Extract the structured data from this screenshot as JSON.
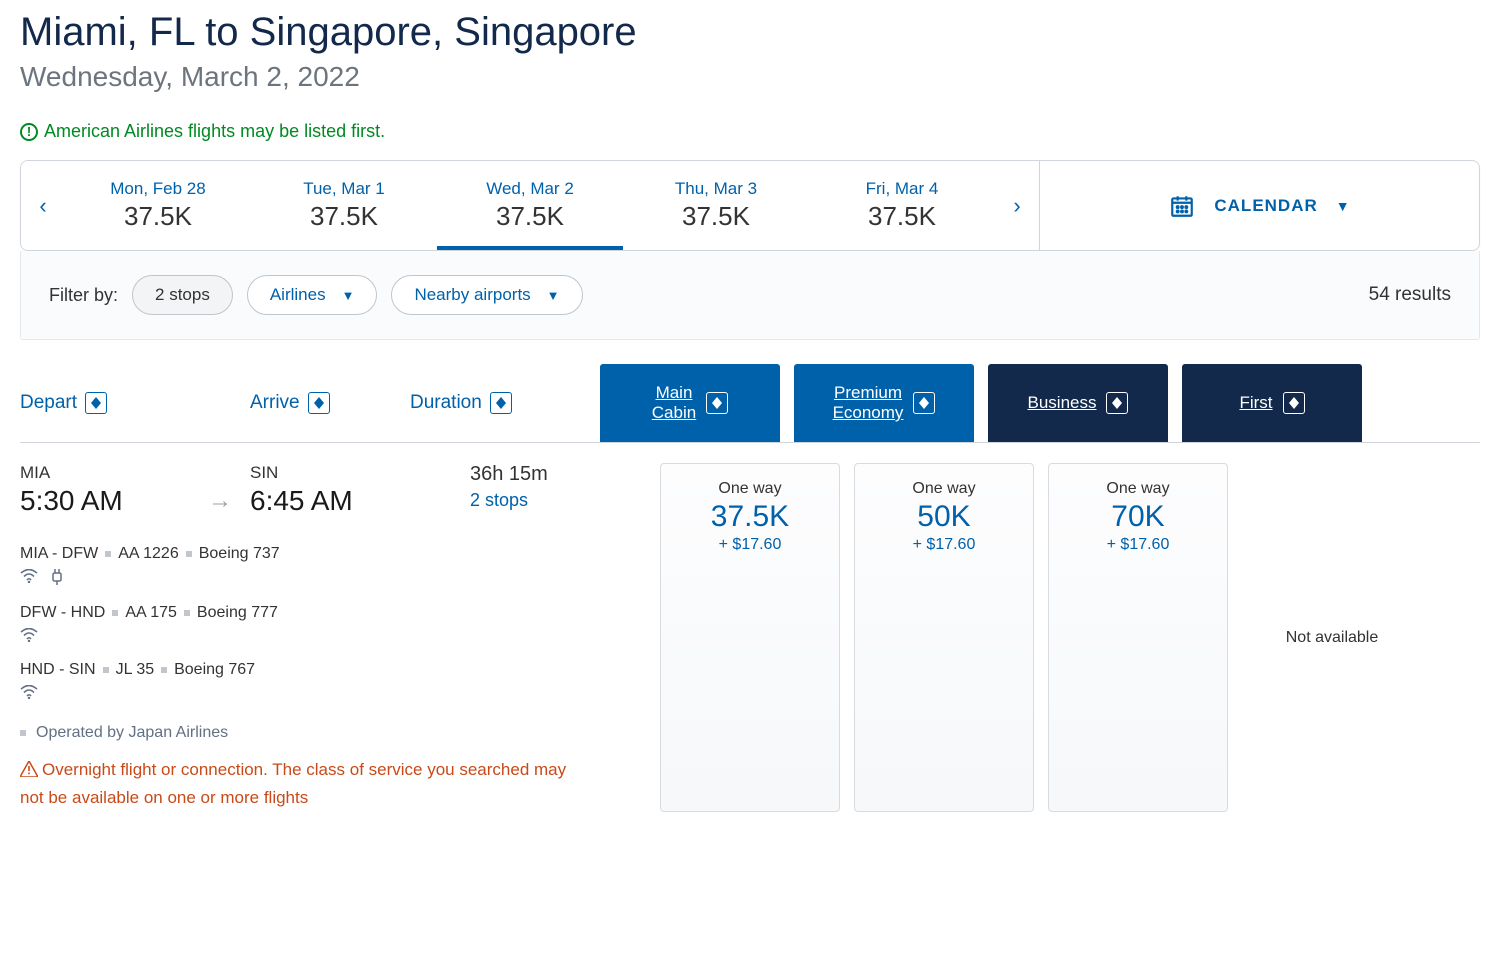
{
  "header": {
    "title": "Miami, FL to Singapore, Singapore",
    "subtitle": "Wednesday, March 2, 2022"
  },
  "notice": {
    "text": "American Airlines flights may be listed first."
  },
  "dateBar": {
    "items": [
      {
        "label": "Mon, Feb 28",
        "price": "37.5K",
        "selected": false
      },
      {
        "label": "Tue, Mar 1",
        "price": "37.5K",
        "selected": false
      },
      {
        "label": "Wed, Mar 2",
        "price": "37.5K",
        "selected": true
      },
      {
        "label": "Thu, Mar 3",
        "price": "37.5K",
        "selected": false
      },
      {
        "label": "Fri, Mar 4",
        "price": "37.5K",
        "selected": false
      }
    ],
    "calendarLabel": "CALENDAR"
  },
  "filters": {
    "label": "Filter by:",
    "stops": "2 stops",
    "airlines": "Airlines",
    "nearby": "Nearby airports",
    "results": "54 results"
  },
  "columns": {
    "depart": "Depart",
    "arrive": "Arrive",
    "duration": "Duration",
    "cabins": [
      {
        "key": "main",
        "label": "Main Cabin",
        "style": "main"
      },
      {
        "key": "premium",
        "label": "Premium Economy",
        "style": "premium"
      },
      {
        "key": "business",
        "label": "Business",
        "style": "business"
      },
      {
        "key": "first",
        "label": "First",
        "style": "first"
      }
    ]
  },
  "flight": {
    "depart": {
      "code": "MIA",
      "time": "5:30 AM"
    },
    "arrive": {
      "code": "SIN",
      "time": "6:45 AM"
    },
    "duration": "36h 15m",
    "stopsText": "2 stops",
    "fares": {
      "main": {
        "type": "One way",
        "miles": "37.5K",
        "tax": "+ $17.60"
      },
      "premium": {
        "type": "One way",
        "miles": "50K",
        "tax": "+ $17.60"
      },
      "business": {
        "type": "One way",
        "miles": "70K",
        "tax": "+ $17.60"
      },
      "first": {
        "na": "Not available"
      }
    },
    "segments": [
      {
        "route": "MIA - DFW",
        "flight": "AA 1226",
        "aircraft": "Boeing 737",
        "amenities": [
          "wifi",
          "power"
        ]
      },
      {
        "route": "DFW - HND",
        "flight": "AA 175",
        "aircraft": "Boeing 777",
        "amenities": [
          "wifi"
        ]
      },
      {
        "route": "HND - SIN",
        "flight": "JL 35",
        "aircraft": "Boeing 767",
        "amenities": [
          "wifi"
        ]
      }
    ],
    "operatedBy": "Operated by Japan Airlines",
    "warning": "Overnight flight or connection. The class of service you searched may not be available on one or more flights"
  },
  "colors": {
    "link": "#0061ab",
    "dark": "#13294b",
    "green": "#008a22",
    "warn": "#c94a18"
  }
}
